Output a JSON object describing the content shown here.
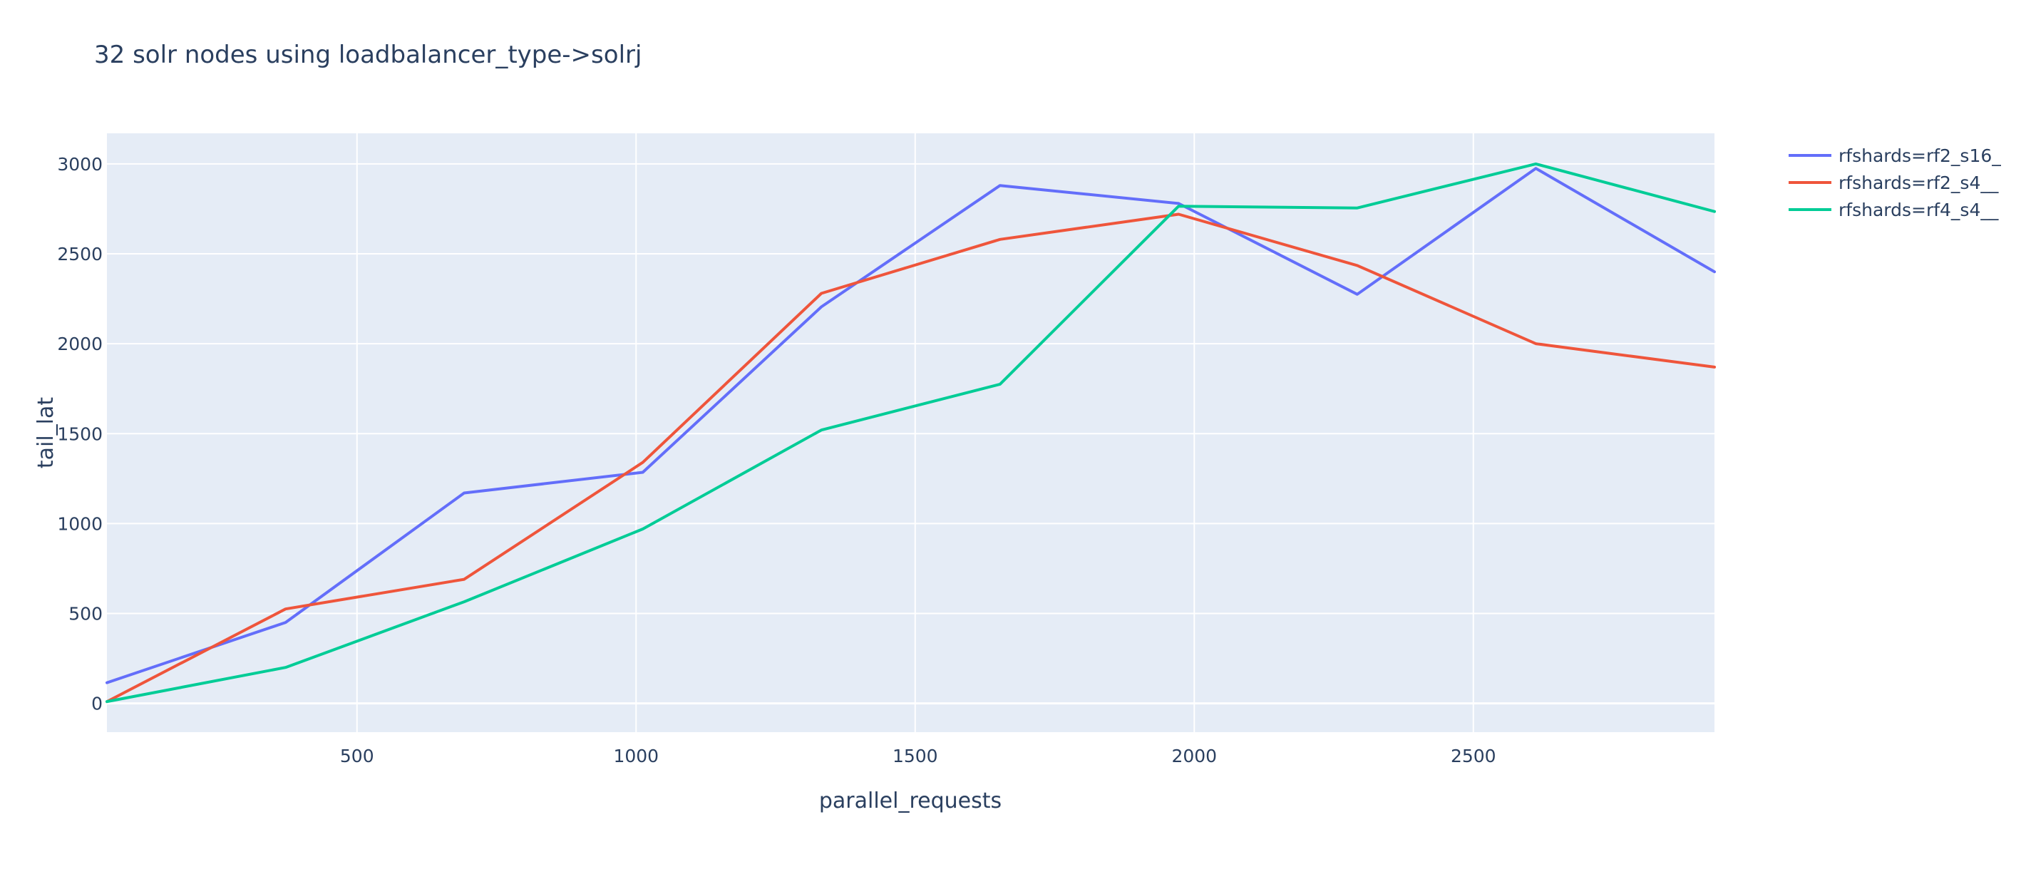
{
  "chart_data": {
    "type": "line",
    "title": "32 solr nodes using loadbalancer_type->solrj",
    "xlabel": "parallel_requests",
    "ylabel": "tail_lat",
    "xlim": [
      52,
      2932
    ],
    "ylim": [
      -160,
      3170
    ],
    "x_ticks": [
      500,
      1000,
      1500,
      2000,
      2500
    ],
    "y_ticks": [
      0,
      500,
      1000,
      1500,
      2000,
      2500,
      3000
    ],
    "grid": true,
    "legend_position": "top-right",
    "series": [
      {
        "name": "rfshards=rf2_s16_",
        "color": "#636efa",
        "x": [
          52,
          372,
          692,
          1012,
          1332,
          1652,
          1972,
          2292,
          2612,
          2932
        ],
        "y": [
          115,
          450,
          1170,
          1285,
          2205,
          2880,
          2780,
          2275,
          2975,
          2400
        ]
      },
      {
        "name": "rfshards=rf2_s4__",
        "color": "#ef553b",
        "x": [
          52,
          372,
          692,
          1012,
          1332,
          1652,
          1972,
          2292,
          2612,
          2932
        ],
        "y": [
          10,
          525,
          690,
          1340,
          2280,
          2580,
          2720,
          2435,
          2000,
          1870
        ]
      },
      {
        "name": "rfshards=rf4_s4__",
        "color": "#00cc96",
        "x": [
          52,
          372,
          692,
          1012,
          1332,
          1652,
          1972,
          2292,
          2612,
          2932
        ],
        "y": [
          10,
          200,
          565,
          970,
          1520,
          1775,
          2765,
          2755,
          3000,
          2735
        ]
      }
    ]
  }
}
